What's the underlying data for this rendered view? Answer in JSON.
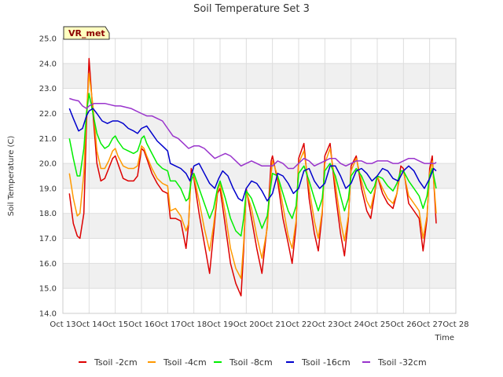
{
  "chart_data": {
    "type": "line",
    "title": "Soil Temperature Set 3",
    "xlabel": "Time",
    "ylabel": "Soil Temperature (C)",
    "site_label": "VR_met",
    "xlim": [
      13,
      28
    ],
    "ylim": [
      14.0,
      25.0
    ],
    "x_ticks": [
      13,
      14,
      15,
      16,
      17,
      18,
      19,
      20,
      21,
      22,
      23,
      24,
      25,
      26,
      27,
      28
    ],
    "x_tick_labels": [
      "Oct 13",
      "Oct 14",
      "Oct 15",
      "Oct 16",
      "Oct 17",
      "Oct 18",
      "Oct 19",
      "Oct 20",
      "Oct 21",
      "Oct 22",
      "Oct 23",
      "Oct 24",
      "Oct 25",
      "Oct 26",
      "Oct 27",
      "Oct 28"
    ],
    "y_ticks": [
      14.0,
      15.0,
      16.0,
      17.0,
      18.0,
      19.0,
      20.0,
      21.0,
      22.0,
      23.0,
      24.0,
      25.0
    ],
    "y_tick_labels": [
      "14.0",
      "15.0",
      "16.0",
      "17.0",
      "18.0",
      "19.0",
      "20.0",
      "21.0",
      "22.0",
      "23.0",
      "24.0",
      "25.0"
    ],
    "grid": true,
    "legend_position": "bottom",
    "series": [
      {
        "name": "Tsoil -2cm",
        "color": "#dd0000",
        "x": [
          13.25,
          13.4,
          13.55,
          13.65,
          13.8,
          13.9,
          14.0,
          14.15,
          14.3,
          14.45,
          14.6,
          14.75,
          14.9,
          15.0,
          15.1,
          15.3,
          15.5,
          15.7,
          15.85,
          15.95,
          16.0,
          16.1,
          16.2,
          16.4,
          16.6,
          16.8,
          17.0,
          17.1,
          17.3,
          17.5,
          17.7,
          17.8,
          17.9,
          18.0,
          18.2,
          18.4,
          18.6,
          18.75,
          18.9,
          19.0,
          19.2,
          19.4,
          19.6,
          19.8,
          19.9,
          20.0,
          20.2,
          20.4,
          20.6,
          20.8,
          20.95,
          21.0,
          21.2,
          21.4,
          21.6,
          21.75,
          21.9,
          22.0,
          22.2,
          22.4,
          22.6,
          22.75,
          22.9,
          23.0,
          23.2,
          23.4,
          23.6,
          23.75,
          23.9,
          24.0,
          24.2,
          24.4,
          24.6,
          24.75,
          24.9,
          25.0,
          25.2,
          25.4,
          25.6,
          25.75,
          25.9,
          26.0,
          26.2,
          26.4,
          26.6,
          26.75,
          26.9,
          27.0,
          27.1,
          27.25
        ],
        "y": [
          18.8,
          17.6,
          17.1,
          17.0,
          18.0,
          21.5,
          24.2,
          22.0,
          20.0,
          19.3,
          19.4,
          19.8,
          20.2,
          20.3,
          20.0,
          19.4,
          19.3,
          19.3,
          19.5,
          20.2,
          20.6,
          20.5,
          20.2,
          19.6,
          19.2,
          18.9,
          18.8,
          17.8,
          17.8,
          17.7,
          16.6,
          17.6,
          19.8,
          19.4,
          18.0,
          16.8,
          15.6,
          17.2,
          18.8,
          19.0,
          17.5,
          16.0,
          15.2,
          14.7,
          16.5,
          19.0,
          17.8,
          16.6,
          15.6,
          17.5,
          20.1,
          20.3,
          19.3,
          17.8,
          16.8,
          16.0,
          17.5,
          20.2,
          20.8,
          18.6,
          17.2,
          16.5,
          18.0,
          20.3,
          20.8,
          18.8,
          17.2,
          16.3,
          17.8,
          19.9,
          20.3,
          19.0,
          18.1,
          17.8,
          18.8,
          19.5,
          18.8,
          18.4,
          18.2,
          18.8,
          19.9,
          19.8,
          18.4,
          18.1,
          17.8,
          16.5,
          17.8,
          19.8,
          20.3,
          17.6
        ]
      },
      {
        "name": "Tsoil -4cm",
        "color": "#ff9900",
        "x": [
          13.25,
          13.4,
          13.55,
          13.65,
          13.8,
          13.9,
          14.0,
          14.15,
          14.3,
          14.45,
          14.6,
          14.75,
          14.9,
          15.0,
          15.1,
          15.3,
          15.5,
          15.7,
          15.85,
          15.95,
          16.0,
          16.1,
          16.2,
          16.4,
          16.6,
          16.8,
          17.0,
          17.1,
          17.3,
          17.5,
          17.7,
          17.8,
          17.9,
          18.0,
          18.2,
          18.4,
          18.6,
          18.75,
          18.9,
          19.0,
          19.2,
          19.4,
          19.6,
          19.8,
          19.9,
          20.0,
          20.2,
          20.4,
          20.6,
          20.8,
          20.95,
          21.0,
          21.2,
          21.4,
          21.6,
          21.75,
          21.9,
          22.0,
          22.2,
          22.4,
          22.6,
          22.75,
          22.9,
          23.0,
          23.2,
          23.4,
          23.6,
          23.75,
          23.9,
          24.0,
          24.2,
          24.4,
          24.6,
          24.75,
          24.9,
          25.0,
          25.2,
          25.4,
          25.6,
          25.75,
          25.9,
          26.0,
          26.2,
          26.4,
          26.6,
          26.75,
          26.9,
          27.0,
          27.1,
          27.25
        ],
        "y": [
          19.6,
          18.6,
          17.9,
          18.0,
          19.6,
          22.0,
          23.6,
          22.3,
          20.5,
          19.8,
          19.8,
          20.1,
          20.5,
          20.6,
          20.3,
          19.9,
          19.8,
          19.8,
          19.9,
          20.4,
          20.7,
          20.6,
          20.3,
          19.8,
          19.4,
          19.2,
          19.1,
          18.1,
          18.2,
          17.9,
          17.3,
          17.6,
          19.6,
          19.5,
          18.5,
          17.4,
          16.5,
          17.5,
          18.9,
          19.2,
          18.0,
          16.6,
          15.8,
          15.4,
          16.8,
          18.9,
          18.2,
          17.1,
          16.2,
          17.4,
          19.6,
          20.1,
          19.5,
          18.3,
          17.1,
          16.6,
          17.7,
          20.0,
          20.5,
          19.0,
          17.7,
          17.0,
          18.1,
          20.0,
          20.6,
          19.2,
          17.7,
          16.9,
          17.9,
          19.7,
          20.2,
          19.3,
          18.5,
          18.2,
          18.9,
          19.5,
          19.0,
          18.6,
          18.4,
          18.8,
          19.7,
          19.7,
          18.7,
          18.4,
          18.1,
          17.0,
          17.9,
          19.6,
          20.1,
          18.0
        ]
      },
      {
        "name": "Tsoil -8cm",
        "color": "#00ee00",
        "x": [
          13.25,
          13.4,
          13.55,
          13.65,
          13.8,
          13.9,
          14.0,
          14.15,
          14.3,
          14.45,
          14.6,
          14.75,
          14.9,
          15.0,
          15.1,
          15.3,
          15.5,
          15.7,
          15.85,
          15.95,
          16.0,
          16.1,
          16.2,
          16.4,
          16.6,
          16.8,
          17.0,
          17.1,
          17.3,
          17.5,
          17.7,
          17.8,
          17.9,
          18.0,
          18.2,
          18.4,
          18.6,
          18.75,
          18.9,
          19.0,
          19.2,
          19.4,
          19.6,
          19.8,
          19.9,
          20.0,
          20.2,
          20.4,
          20.6,
          20.8,
          20.95,
          21.0,
          21.2,
          21.4,
          21.6,
          21.75,
          21.9,
          22.0,
          22.2,
          22.4,
          22.6,
          22.75,
          22.9,
          23.0,
          23.2,
          23.4,
          23.6,
          23.75,
          23.9,
          24.0,
          24.2,
          24.4,
          24.6,
          24.75,
          24.9,
          25.0,
          25.2,
          25.4,
          25.6,
          25.75,
          25.9,
          26.0,
          26.2,
          26.4,
          26.6,
          26.75,
          26.9,
          27.0,
          27.1,
          27.25
        ],
        "y": [
          21.0,
          20.2,
          19.5,
          19.5,
          20.6,
          22.0,
          22.8,
          22.0,
          21.2,
          20.8,
          20.6,
          20.7,
          21.0,
          21.1,
          20.9,
          20.6,
          20.5,
          20.4,
          20.5,
          20.8,
          21.0,
          21.1,
          20.8,
          20.4,
          20.0,
          19.8,
          19.7,
          19.3,
          19.3,
          19.0,
          18.5,
          18.6,
          19.3,
          19.6,
          19.0,
          18.4,
          17.8,
          18.2,
          19.0,
          19.3,
          18.6,
          17.8,
          17.3,
          17.1,
          17.8,
          18.9,
          18.6,
          18.0,
          17.4,
          17.9,
          19.2,
          19.6,
          19.5,
          18.8,
          18.1,
          17.8,
          18.3,
          19.6,
          19.9,
          19.3,
          18.6,
          18.1,
          18.6,
          19.7,
          20.0,
          19.5,
          18.7,
          18.1,
          18.6,
          19.5,
          19.8,
          19.5,
          19.0,
          18.8,
          19.1,
          19.5,
          19.4,
          19.1,
          18.9,
          19.2,
          19.7,
          19.7,
          19.3,
          19.0,
          18.7,
          18.2,
          18.7,
          19.5,
          19.8,
          19.0
        ]
      },
      {
        "name": "Tsoil -16cm",
        "color": "#0000cc",
        "x": [
          13.25,
          13.4,
          13.6,
          13.75,
          13.9,
          14.0,
          14.15,
          14.3,
          14.5,
          14.7,
          14.9,
          15.1,
          15.3,
          15.5,
          15.7,
          15.85,
          16.0,
          16.2,
          16.4,
          16.6,
          16.8,
          17.0,
          17.1,
          17.3,
          17.5,
          17.7,
          17.85,
          18.0,
          18.2,
          18.4,
          18.6,
          18.8,
          18.95,
          19.1,
          19.3,
          19.5,
          19.7,
          19.85,
          20.0,
          20.2,
          20.4,
          20.6,
          20.8,
          21.0,
          21.2,
          21.4,
          21.6,
          21.8,
          22.0,
          22.2,
          22.4,
          22.6,
          22.8,
          23.0,
          23.2,
          23.4,
          23.6,
          23.8,
          24.0,
          24.2,
          24.4,
          24.6,
          24.8,
          25.0,
          25.2,
          25.4,
          25.6,
          25.8,
          26.0,
          26.2,
          26.4,
          26.6,
          26.8,
          27.0,
          27.15,
          27.25
        ],
        "y": [
          22.2,
          21.8,
          21.3,
          21.4,
          21.9,
          22.1,
          22.2,
          22.0,
          21.7,
          21.6,
          21.7,
          21.7,
          21.6,
          21.4,
          21.3,
          21.2,
          21.4,
          21.5,
          21.2,
          20.9,
          20.7,
          20.5,
          20.0,
          19.9,
          19.8,
          19.6,
          19.3,
          19.9,
          20.0,
          19.6,
          19.2,
          19.0,
          19.4,
          19.7,
          19.5,
          19.0,
          18.6,
          18.5,
          19.0,
          19.3,
          19.2,
          18.9,
          18.5,
          18.8,
          19.6,
          19.5,
          19.2,
          18.8,
          19.0,
          19.7,
          19.8,
          19.3,
          19.0,
          19.2,
          19.9,
          19.9,
          19.5,
          19.0,
          19.2,
          19.7,
          19.8,
          19.6,
          19.3,
          19.5,
          19.8,
          19.7,
          19.4,
          19.3,
          19.7,
          19.9,
          19.7,
          19.3,
          19.0,
          19.4,
          19.8,
          19.7
        ]
      },
      {
        "name": "Tsoil -32cm",
        "color": "#9933cc",
        "x": [
          13.25,
          13.4,
          13.6,
          13.75,
          13.9,
          14.0,
          14.2,
          14.4,
          14.6,
          14.8,
          15.0,
          15.2,
          15.4,
          15.6,
          15.8,
          16.0,
          16.2,
          16.4,
          16.6,
          16.8,
          17.0,
          17.2,
          17.4,
          17.6,
          17.8,
          18.0,
          18.2,
          18.4,
          18.6,
          18.8,
          19.0,
          19.2,
          19.4,
          19.6,
          19.8,
          20.0,
          20.2,
          20.4,
          20.6,
          20.8,
          21.0,
          21.2,
          21.4,
          21.6,
          21.8,
          22.0,
          22.2,
          22.4,
          22.6,
          22.8,
          23.0,
          23.2,
          23.4,
          23.6,
          23.8,
          24.0,
          24.2,
          24.4,
          24.6,
          24.8,
          25.0,
          25.2,
          25.4,
          25.6,
          25.8,
          26.0,
          26.2,
          26.4,
          26.6,
          26.8,
          27.0,
          27.2,
          27.25
        ],
        "y": [
          22.6,
          22.55,
          22.5,
          22.3,
          22.2,
          22.3,
          22.4,
          22.4,
          22.4,
          22.35,
          22.3,
          22.3,
          22.25,
          22.2,
          22.1,
          22.0,
          21.9,
          21.9,
          21.8,
          21.7,
          21.4,
          21.1,
          21.0,
          20.8,
          20.6,
          20.7,
          20.7,
          20.6,
          20.4,
          20.2,
          20.3,
          20.4,
          20.3,
          20.1,
          19.9,
          20.0,
          20.1,
          20.0,
          19.9,
          19.9,
          19.9,
          20.1,
          20.0,
          19.8,
          19.8,
          20.0,
          20.2,
          20.1,
          19.9,
          20.0,
          20.1,
          20.2,
          20.2,
          20.0,
          19.9,
          20.0,
          20.1,
          20.1,
          20.0,
          20.0,
          20.1,
          20.1,
          20.1,
          20.0,
          20.0,
          20.1,
          20.2,
          20.2,
          20.1,
          20.0,
          20.0,
          20.0,
          20.05
        ]
      }
    ]
  }
}
